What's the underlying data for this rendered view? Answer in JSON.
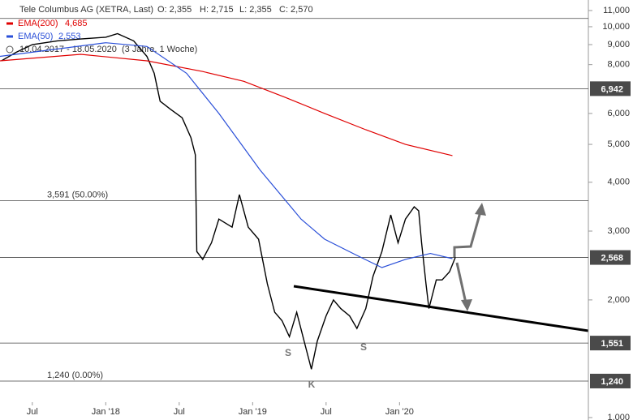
{
  "chart_data": {
    "type": "line",
    "title": "Tele Columbus AG (XETRA, Last)",
    "quote": [
      "O: 2,355",
      "H: 2,715",
      "L: 2,355",
      "C: 2,570"
    ],
    "period": "10.04.2017 - 18.05.2020",
    "period_note": "(3 Jahre, 1 Woche)",
    "log_scale": "y",
    "xlim": [
      2017.28,
      2021.28
    ],
    "xticks": [
      {
        "value": 2017.5,
        "label": "Jul"
      },
      {
        "value": 2018,
        "label": "Jan '18"
      },
      {
        "value": 2018.5,
        "label": "Jul"
      },
      {
        "value": 2019,
        "label": "Jan '19"
      },
      {
        "value": 2019.5,
        "label": "Jul"
      },
      {
        "value": 2020,
        "label": "Jan '20"
      }
    ],
    "ylim": [
      1,
      11
    ],
    "yticks": [
      {
        "value": 1,
        "label": "1,000"
      },
      {
        "value": 2,
        "label": "2,000"
      },
      {
        "value": 3,
        "label": "3,000"
      },
      {
        "value": 4,
        "label": "4,000"
      },
      {
        "value": 5,
        "label": "5,000"
      },
      {
        "value": 6,
        "label": "6,000"
      },
      {
        "value": 8,
        "label": "8,000"
      },
      {
        "value": 9,
        "label": "9,000"
      },
      {
        "value": 10,
        "label": "10,000"
      },
      {
        "value": 11,
        "label": "11,000"
      }
    ],
    "series": [
      {
        "color": "#000000",
        "x": [
          2017.29,
          2017.39,
          2017.5,
          2017.67,
          2017.83,
          2018.0,
          2018.08,
          2018.19,
          2018.28,
          2018.33,
          2018.37,
          2018.44,
          2018.52,
          2018.58,
          2018.61,
          2018.62,
          2018.66,
          2018.72,
          2018.77,
          2018.86,
          2018.91,
          2018.97,
          2019.04,
          2019.1,
          2019.15,
          2019.2,
          2019.25,
          2019.3,
          2019.35,
          2019.4,
          2019.44,
          2019.5,
          2019.55,
          2019.6,
          2019.66,
          2019.71,
          2019.77,
          2019.82,
          2019.88,
          2019.94,
          2019.99,
          2020.04,
          2020.1,
          2020.13,
          2020.15,
          2020.18,
          2020.2,
          2020.25,
          2020.29,
          2020.34,
          2020.38
        ],
        "values": [
          8.18,
          8.6,
          9.0,
          9.2,
          9.3,
          9.4,
          9.6,
          9.2,
          8.4,
          7.6,
          6.45,
          6.15,
          5.85,
          5.2,
          4.7,
          2.66,
          2.54,
          2.8,
          3.22,
          3.07,
          3.72,
          3.07,
          2.86,
          2.2,
          1.86,
          1.77,
          1.61,
          1.86,
          1.57,
          1.33,
          1.57,
          1.82,
          2.0,
          1.9,
          1.82,
          1.69,
          1.9,
          2.3,
          2.66,
          3.3,
          2.8,
          3.22,
          3.46,
          3.38,
          2.8,
          2.2,
          1.9,
          2.25,
          2.25,
          2.36,
          2.57
        ]
      },
      {
        "name": "EMA(200)",
        "legend_value": "4,685",
        "color": "#e00000",
        "x": [
          2017.28,
          2017.83,
          2018.28,
          2018.66,
          2018.94,
          2019.22,
          2019.49,
          2019.77,
          2020.04,
          2020.36
        ],
        "values": [
          8.18,
          8.5,
          8.18,
          7.68,
          7.25,
          6.6,
          6.0,
          5.45,
          5.0,
          4.68
        ]
      },
      {
        "name": "EMA(50)",
        "legend_value": "2,553",
        "color": "#2a4fd8",
        "x": [
          2017.28,
          2018.0,
          2018.28,
          2018.55,
          2018.77,
          2019.05,
          2019.33,
          2019.49,
          2019.71,
          2019.88,
          2020.04,
          2020.21,
          2020.36
        ],
        "values": [
          8.4,
          9.1,
          8.9,
          7.6,
          6.0,
          4.3,
          3.22,
          2.86,
          2.6,
          2.42,
          2.54,
          2.63,
          2.55
        ]
      }
    ],
    "levels": [
      {
        "value": 10.5
      },
      {
        "value": 6.942,
        "box": "6,942"
      },
      {
        "value": 3.591,
        "note": "3,591 (50.00%)"
      },
      {
        "value": 2.568,
        "box": "2,568"
      },
      {
        "value": 1.551,
        "box": "1,551"
      },
      {
        "value": 1.24,
        "box": "1,240",
        "note": "1,240 (0.00%)"
      }
    ],
    "markers": [
      "S",
      "S",
      "K"
    ]
  }
}
